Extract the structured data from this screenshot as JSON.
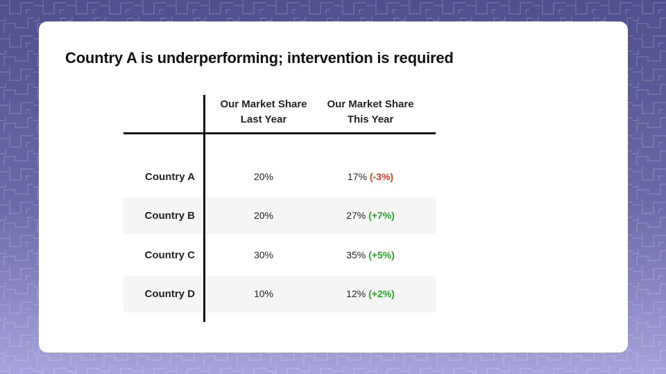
{
  "slide": {
    "title": "Country A is underperforming; intervention is required"
  },
  "table": {
    "headers": [
      {
        "line1": "Our Market Share",
        "line2": "Last Year"
      },
      {
        "line1": "Our Market Share",
        "line2": "This Year"
      }
    ],
    "rows": [
      {
        "country": "Country A",
        "last_year": "20%",
        "this_year": "17%",
        "change": "(-3%)",
        "trend": "negative"
      },
      {
        "country": "Country B",
        "last_year": "20%",
        "this_year": "27%",
        "change": "(+7%)",
        "trend": "positive"
      },
      {
        "country": "Country C",
        "last_year": "30%",
        "this_year": "35%",
        "change": "(+5%)",
        "trend": "positive"
      },
      {
        "country": "Country D",
        "last_year": "10%",
        "this_year": "12%",
        "change": "(+2%)",
        "trend": "positive"
      }
    ]
  },
  "colors": {
    "negative": "#e03a1e",
    "positive": "#22a822",
    "background_top": "#4e4f8c",
    "background_bottom": "#a6a3dc"
  }
}
